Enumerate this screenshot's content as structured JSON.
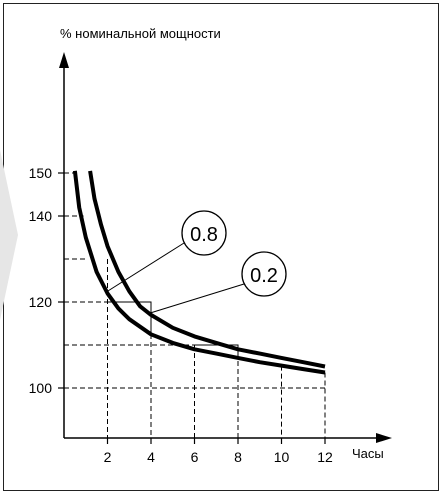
{
  "chart_data": {
    "type": "line",
    "ylabel": "% номинальной мощности",
    "xlabel": "Часы",
    "xlim": [
      0,
      14.5
    ],
    "ylim": [
      88,
      175
    ],
    "x_ticks": [
      "2",
      "4",
      "6",
      "8",
      "10",
      "12"
    ],
    "x_tick_values": [
      2,
      4,
      6,
      8,
      10,
      12
    ],
    "y_ticks": [
      "100",
      "120",
      "140",
      "150"
    ],
    "y_tick_values": [
      100,
      120,
      140,
      150
    ],
    "grid": "dashed reference lines",
    "series": [
      {
        "name": "0.8",
        "points": [
          [
            0.5,
            150.5
          ],
          [
            0.7,
            142
          ],
          [
            1.0,
            135
          ],
          [
            1.5,
            127
          ],
          [
            2.0,
            122
          ],
          [
            2.5,
            118.5
          ],
          [
            3.0,
            116
          ],
          [
            4.0,
            112.5
          ],
          [
            5.0,
            110.5
          ],
          [
            6.0,
            109
          ],
          [
            7.0,
            108
          ],
          [
            8.0,
            107
          ],
          [
            9.0,
            106
          ],
          [
            10.0,
            105.2
          ],
          [
            11.0,
            104.4
          ],
          [
            12.0,
            103.6
          ]
        ]
      },
      {
        "name": "0.2",
        "points": [
          [
            1.2,
            150.5
          ],
          [
            1.4,
            144
          ],
          [
            1.7,
            138
          ],
          [
            2.0,
            133
          ],
          [
            2.5,
            127
          ],
          [
            3.0,
            122.5
          ],
          [
            3.5,
            119
          ],
          [
            4.0,
            117
          ],
          [
            5.0,
            114
          ],
          [
            6.0,
            112
          ],
          [
            7.0,
            110.5
          ],
          [
            8.0,
            109
          ],
          [
            9.0,
            108
          ],
          [
            10.0,
            107
          ],
          [
            11.0,
            106
          ],
          [
            12.0,
            105
          ]
        ]
      }
    ],
    "reference_lines": [
      {
        "x_to": 1.0,
        "y": 130
      },
      {
        "x_to": 4.0,
        "y": 120
      },
      {
        "x_to": 8.0,
        "y": 110
      },
      {
        "x_to": 12.0,
        "y": 100
      },
      {
        "x_to": 0.5,
        "y": 150
      },
      {
        "x_to": 0.9,
        "y": 140
      }
    ],
    "boxes": [
      {
        "x0": 2,
        "x1": 4,
        "y0": 112.5,
        "y1": 120
      },
      {
        "x0": 6,
        "x1": 8,
        "y0": 107,
        "y1": 110
      }
    ],
    "vertical_lines": [
      {
        "x": 2,
        "y_top": 130
      },
      {
        "x": 4,
        "y_top": 120
      },
      {
        "x": 6,
        "y_top": 110
      },
      {
        "x": 8,
        "y_top": 110
      },
      {
        "x": 10,
        "y_top": 105.2
      },
      {
        "x": 12,
        "y_top": 103.6
      }
    ],
    "annotations": [
      {
        "label": "0.8",
        "series": "0.8",
        "target": [
          2.0,
          122.5
        ]
      },
      {
        "label": "0.2",
        "series": "0.2",
        "target": [
          4.0,
          117.5
        ]
      }
    ]
  }
}
